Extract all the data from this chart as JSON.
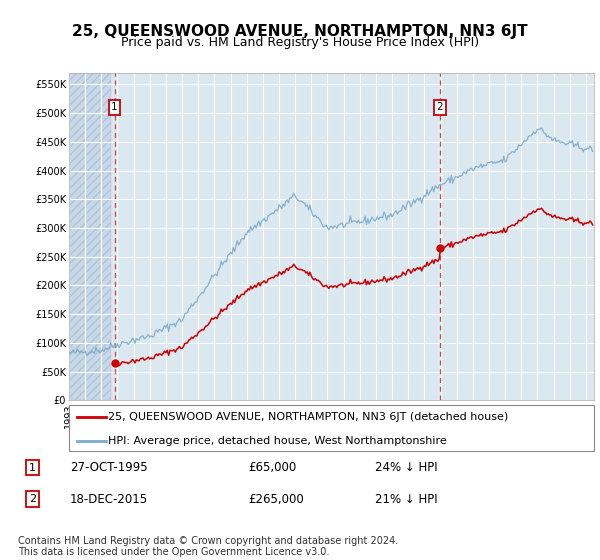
{
  "title": "25, QUEENSWOOD AVENUE, NORTHAMPTON, NN3 6JT",
  "subtitle": "Price paid vs. HM Land Registry's House Price Index (HPI)",
  "ylim": [
    0,
    570000
  ],
  "yticks": [
    0,
    50000,
    100000,
    150000,
    200000,
    250000,
    300000,
    350000,
    400000,
    450000,
    500000,
    550000
  ],
  "ytick_labels": [
    "£0",
    "£50K",
    "£100K",
    "£150K",
    "£200K",
    "£250K",
    "£300K",
    "£350K",
    "£400K",
    "£450K",
    "£500K",
    "£550K"
  ],
  "transaction1_date": 1995.82,
  "transaction1_price": 65000,
  "transaction2_date": 2015.96,
  "transaction2_price": 265000,
  "transaction1_text": "27-OCT-1995",
  "transaction1_amount": "£65,000",
  "transaction1_hpi": "24% ↓ HPI",
  "transaction2_text": "18-DEC-2015",
  "transaction2_amount": "£265,000",
  "transaction2_hpi": "21% ↓ HPI",
  "line1_color": "#cc0000",
  "line2_color": "#7aabcc",
  "vline_color": "#cc0000",
  "annotation_box_color": "#cc0000",
  "background_color": "#ffffff",
  "plot_bg_color": "#dce8f0",
  "hatch_region_color": "#c8d8e8",
  "grid_color": "#ffffff",
  "legend_label1": "25, QUEENSWOOD AVENUE, NORTHAMPTON, NN3 6JT (detached house)",
  "legend_label2": "HPI: Average price, detached house, West Northamptonshire",
  "footer": "Contains HM Land Registry data © Crown copyright and database right 2024.\nThis data is licensed under the Open Government Licence v3.0.",
  "title_fontsize": 11,
  "subtitle_fontsize": 9,
  "tick_fontsize": 7,
  "legend_fontsize": 8,
  "footer_fontsize": 7,
  "xlim_start": 1993.0,
  "xlim_end": 2025.5
}
